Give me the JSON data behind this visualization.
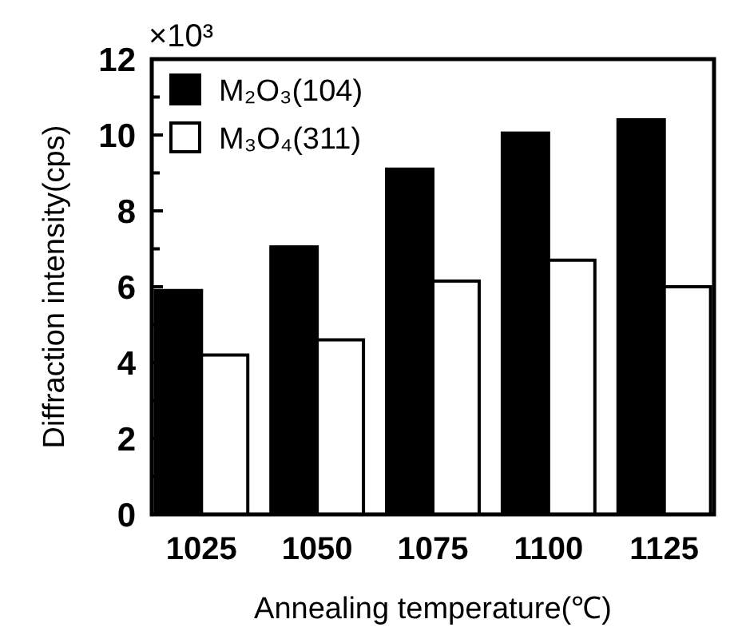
{
  "chart_data": {
    "type": "bar",
    "xlabel": "Annealing temperature(℃)",
    "ylabel": "Diffraction intensity(cps)",
    "annotations": [
      "×10³"
    ],
    "categories": [
      "1025",
      "1050",
      "1075",
      "1100",
      "1125"
    ],
    "series": [
      {
        "name": "M₂O₃(104)",
        "color": "#000000",
        "values": [
          5.9,
          7.05,
          9.1,
          10.05,
          10.4
        ]
      },
      {
        "name": "M₃O₄(311)",
        "color": "#ffffff",
        "values": [
          4.2,
          4.6,
          6.15,
          6.7,
          6.0
        ]
      }
    ],
    "ylim": [
      0,
      12
    ],
    "yticks": [
      0,
      {
        "value": 1,
        "label": null
      },
      2,
      {
        "value": 3,
        "label": null
      },
      4,
      {
        "value": 5,
        "label": null
      },
      6,
      {
        "value": 7,
        "label": null
      },
      8,
      {
        "value": 9,
        "label": null
      },
      10,
      {
        "value": 11,
        "label": null
      },
      12
    ],
    "grid": false,
    "legend": "top left"
  }
}
